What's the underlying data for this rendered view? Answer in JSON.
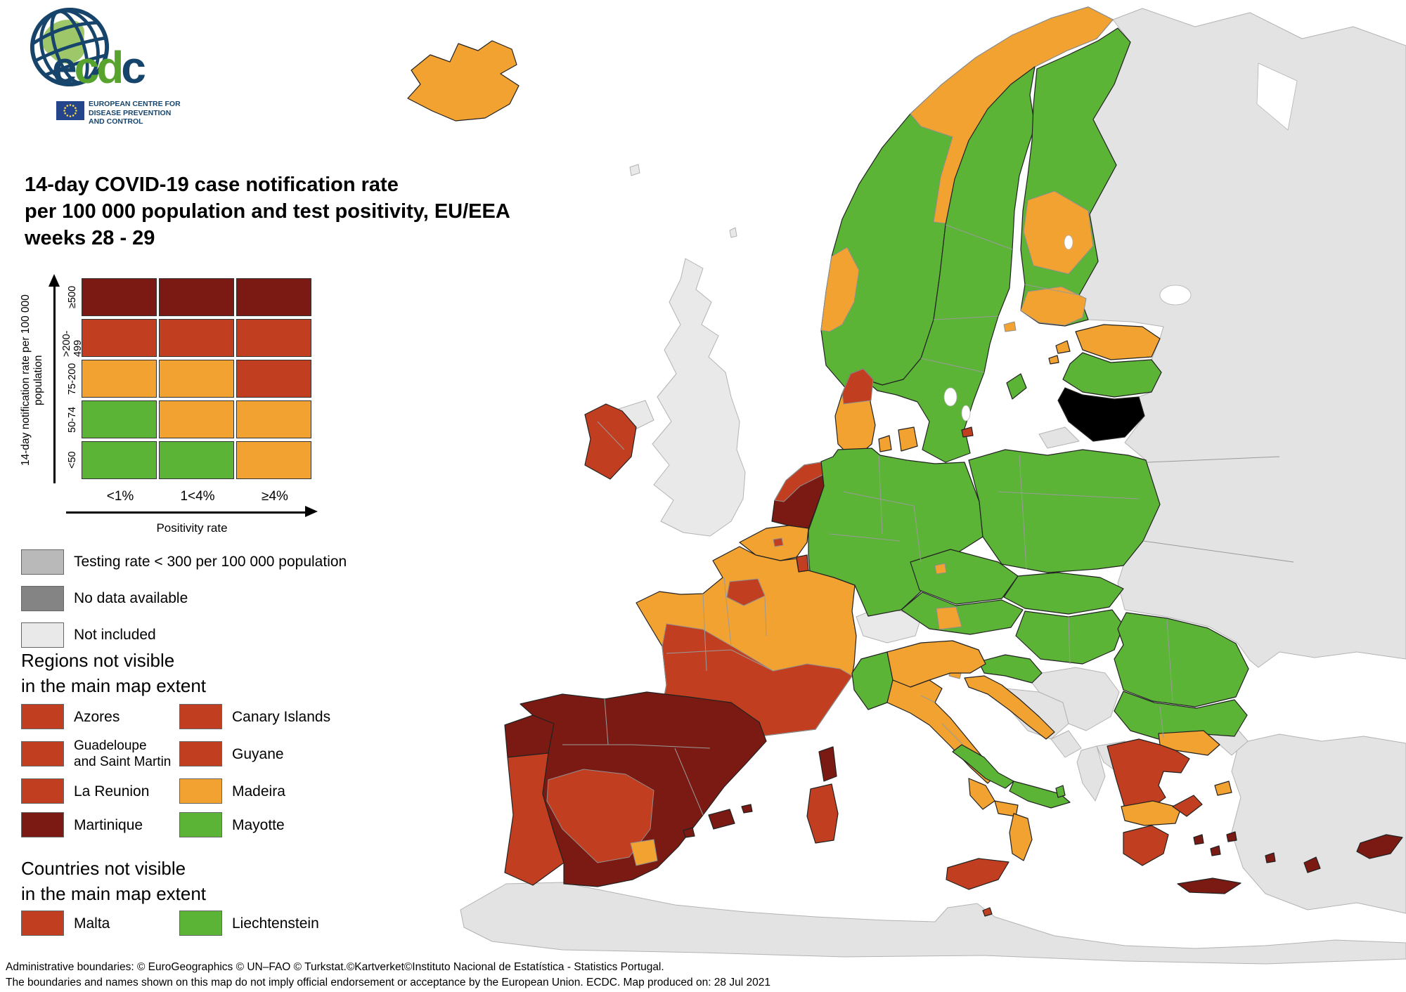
{
  "logo": {
    "org": "ecdc",
    "caption": "EUROPEAN CENTRE FOR\nDISEASE PREVENTION\nAND CONTROL"
  },
  "title": {
    "line1": "14-day COVID-19 case notification rate",
    "line2": "per 100 000 population and test positivity, EU/EEA",
    "line3": "weeks 28 - 29"
  },
  "colors": {
    "dark_red": "#7B1A12",
    "red": "#C23E20",
    "orange": "#F1A230",
    "green": "#5CB437",
    "testing_gray": "#B9B9B9",
    "no_data_gray": "#848484",
    "not_included": "#E9E9E9",
    "outside": "#E3E3E3",
    "sea": "#FFFFFF",
    "accent_navy": "#17446B",
    "accent_green": "#58A32E"
  },
  "matrix_legend": {
    "y_axis_label": "14-day notification rate per 100 000 population",
    "x_axis_label": "Positivity rate",
    "columns": [
      "<1%",
      "1<4%",
      "≥4%"
    ],
    "rows": [
      {
        "label": "≥500",
        "cells": [
          "dark_red",
          "dark_red",
          "dark_red"
        ]
      },
      {
        "label": ">200-499",
        "cells": [
          "red",
          "red",
          "red"
        ]
      },
      {
        "label": "75-200",
        "cells": [
          "orange",
          "orange",
          "red"
        ]
      },
      {
        "label": "50-74",
        "cells": [
          "green",
          "orange",
          "orange"
        ]
      },
      {
        "label": "<50",
        "cells": [
          "green",
          "green",
          "orange"
        ]
      }
    ]
  },
  "status_legend": [
    {
      "label": "Testing rate < 300 per 100 000 population",
      "color": "testing_gray"
    },
    {
      "label": "No data available",
      "color": "no_data_gray"
    },
    {
      "label": "Not included",
      "color": "not_included"
    }
  ],
  "regions_not_visible": {
    "heading": "Regions not visible\nin the main map extent",
    "items": [
      {
        "label": "Azores",
        "color": "red"
      },
      {
        "label": "Canary Islands",
        "color": "red"
      },
      {
        "label": "Guadeloupe\nand Saint Martin",
        "color": "red",
        "small": true
      },
      {
        "label": "Guyane",
        "color": "red"
      },
      {
        "label": "La Reunion",
        "color": "red"
      },
      {
        "label": "Madeira",
        "color": "orange"
      },
      {
        "label": "Martinique",
        "color": "dark_red"
      },
      {
        "label": "Mayotte",
        "color": "green"
      }
    ]
  },
  "countries_not_visible": {
    "heading": "Countries not visible\nin the main map extent",
    "items": [
      {
        "label": "Malta",
        "color": "red"
      },
      {
        "label": "Liechtenstein",
        "color": "green"
      }
    ]
  },
  "footer": {
    "line1": "Administrative boundaries: © EuroGeographics © UN–FAO © Turkstat.©Kartverket©Instituto Nacional de Estatística - Statistics Portugal.",
    "line2": "The boundaries and names shown on this map do not imply official endorsement or acceptance by the European Union. ECDC. Map produced on: 28 Jul 2021"
  },
  "map": {
    "region_categories": {
      "iceland": "orange",
      "norway-main": "green",
      "norway-north": "orange",
      "norway-west": "orange",
      "sweden": "green",
      "gotland": "green",
      "finland": "green",
      "finland-central": "orange",
      "finland-south": "orange",
      "aland": "orange",
      "estonia": "orange",
      "estonia-islands": "orange",
      "latvia": "green",
      "lithuania": "no_data",
      "kaliningrad": "outside",
      "denmark-jutland": "orange",
      "denmark-mid": "red",
      "denmark-funen": "orange",
      "denmark-zealand": "orange",
      "bornholm": "red",
      "ireland": "red",
      "northern-ireland": "not_included",
      "britain": "not_included",
      "faroe": "not_included",
      "shetland": "not_included",
      "netherlands": "dark_red",
      "netherlands-north": "red",
      "belgium": "orange",
      "brussels": "red",
      "luxembourg": "red",
      "germany": "green",
      "poland": "green",
      "czechia": "green",
      "prague": "orange",
      "slovakia": "green",
      "austria": "green",
      "salzburg": "orange",
      "hungary": "green",
      "slovenia": "green",
      "slovenia-coast": "orange",
      "croatia-inland": "green",
      "croatia-coast": "orange",
      "switzerland": "not_included",
      "france": "orange",
      "france-south": "red",
      "paris": "red",
      "corsica": "dark_red",
      "spain": "dark_red",
      "spain-central": "red",
      "murcia": "orange",
      "mallorca": "dark_red",
      "ibiza": "dark_red",
      "menorca": "dark_red",
      "portugal-north": "dark_red",
      "portugal": "red",
      "piedmont": "green",
      "italy-north": "orange",
      "italy-central": "orange",
      "abruzzo-molise": "green",
      "puglia": "green",
      "campania": "orange",
      "basilicata": "orange",
      "calabria": "orange",
      "sicily": "red",
      "sardinia": "red",
      "malta": "red",
      "romania": "green",
      "bulgaria": "green",
      "greece-north": "red",
      "greece-thrace": "orange",
      "greece-central": "orange",
      "greece-attica": "red",
      "peloponnese": "red",
      "crete": "dark_red",
      "aegean-islands": "dark_red",
      "ionian-islands": "green",
      "lesbos": "orange",
      "cyprus": "dark_red",
      "russia": "outside",
      "turkey": "outside",
      "turkey-europe": "outside",
      "africa": "outside",
      "bosnia": "outside",
      "serbia": "outside",
      "montenegro": "outside",
      "albania": "outside",
      "north-macedonia": "outside"
    }
  }
}
